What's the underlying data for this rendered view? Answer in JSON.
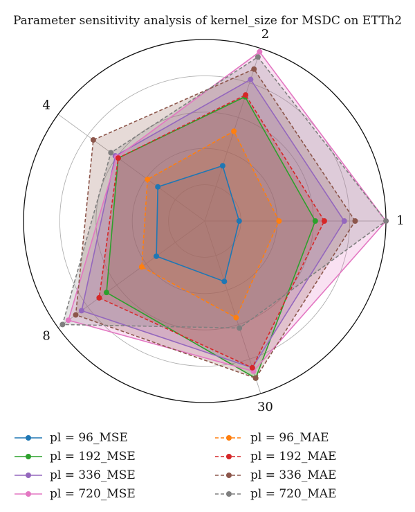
{
  "chart_data": {
    "type": "radar",
    "title": "Parameter sensitivity analysis of kernel_size for MSDC on ETTh2",
    "axes": [
      "1",
      "2",
      "4",
      "8",
      "30"
    ],
    "rlim": [
      0,
      1
    ],
    "grid": true,
    "legend_position": "bottom",
    "series": [
      {
        "name": "pl = 96_MSE",
        "color": "#1f77b4",
        "linestyle": "solid",
        "values": [
          0.19,
          0.32,
          0.32,
          0.33,
          0.35
        ]
      },
      {
        "name": "pl = 192_MSE",
        "color": "#2ca02c",
        "linestyle": "solid",
        "values": [
          0.61,
          0.72,
          0.59,
          0.67,
          0.91
        ]
      },
      {
        "name": "pl = 336_MSE",
        "color": "#9467bd",
        "linestyle": "solid",
        "values": [
          0.77,
          0.82,
          0.61,
          0.84,
          0.85
        ]
      },
      {
        "name": "pl = 720_MSE",
        "color": "#e377c2",
        "linestyle": "solid",
        "values": [
          1.0,
          0.98,
          0.6,
          0.93,
          0.87
        ]
      },
      {
        "name": "pl = 96_MAE",
        "color": "#ff7f0e",
        "linestyle": "dashed",
        "values": [
          0.41,
          0.52,
          0.39,
          0.43,
          0.56
        ]
      },
      {
        "name": "pl = 192_MAE",
        "color": "#d62728",
        "linestyle": "dashed",
        "values": [
          0.66,
          0.73,
          0.59,
          0.72,
          0.85
        ]
      },
      {
        "name": "pl = 336_MAE",
        "color": "#8c564b",
        "linestyle": "dashed",
        "values": [
          0.83,
          0.88,
          0.76,
          0.88,
          0.91
        ]
      },
      {
        "name": "pl = 720_MAE",
        "color": "#7f7f7f",
        "linestyle": "dashed",
        "values": [
          1.0,
          0.95,
          0.64,
          0.97,
          0.62
        ]
      }
    ]
  }
}
